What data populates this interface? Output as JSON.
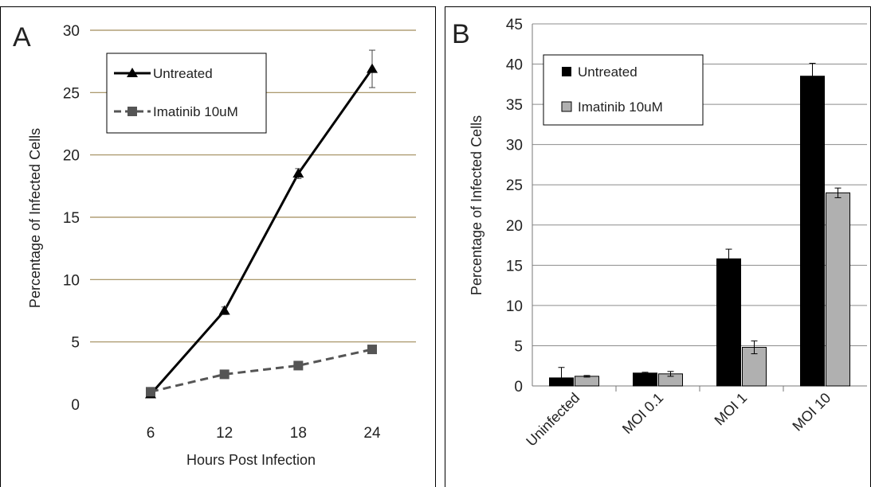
{
  "chart_data": [
    {
      "panel_label": "A",
      "type": "line",
      "title": "",
      "xlabel": "Hours Post Infection",
      "ylabel": "Percentage of Infected Cells",
      "x": [
        6,
        12,
        18,
        24
      ],
      "ylim": [
        0,
        30
      ],
      "yticks": [
        0,
        5,
        10,
        15,
        20,
        25,
        30
      ],
      "grid": true,
      "legend_position": "top-left",
      "series": [
        {
          "name": "Untreated",
          "values": [
            0.8,
            7.5,
            18.5,
            26.9
          ],
          "errors": [
            0,
            0.3,
            0.4,
            1.5
          ],
          "color": "#000000",
          "line": "solid",
          "marker": "triangle"
        },
        {
          "name": "Imatinib 10uM",
          "values": [
            1.0,
            2.4,
            3.1,
            4.4
          ],
          "errors": [
            0,
            0.1,
            0.1,
            0.3
          ],
          "color": "#555555",
          "line": "dashed",
          "marker": "square"
        }
      ]
    },
    {
      "panel_label": "B",
      "type": "bar",
      "title": "",
      "xlabel": "",
      "ylabel": "Percentage of Infected Cells",
      "categories": [
        "Uninfected",
        "MOI 0.1",
        "MOI 1",
        "MOI 10"
      ],
      "ylim": [
        0,
        45
      ],
      "yticks": [
        0,
        5,
        10,
        15,
        20,
        25,
        30,
        35,
        40,
        45
      ],
      "grid": true,
      "legend_position": "top-left",
      "series": [
        {
          "name": "Untreated",
          "values": [
            1.0,
            1.6,
            15.8,
            38.5
          ],
          "errors": [
            1.3,
            0.1,
            1.2,
            1.6
          ],
          "color": "#000000"
        },
        {
          "name": "Imatinib 10uM",
          "values": [
            1.2,
            1.5,
            4.8,
            24.0
          ],
          "errors": [
            0.1,
            0.3,
            0.8,
            0.6
          ],
          "color": "#b0b0b0"
        }
      ]
    }
  ]
}
